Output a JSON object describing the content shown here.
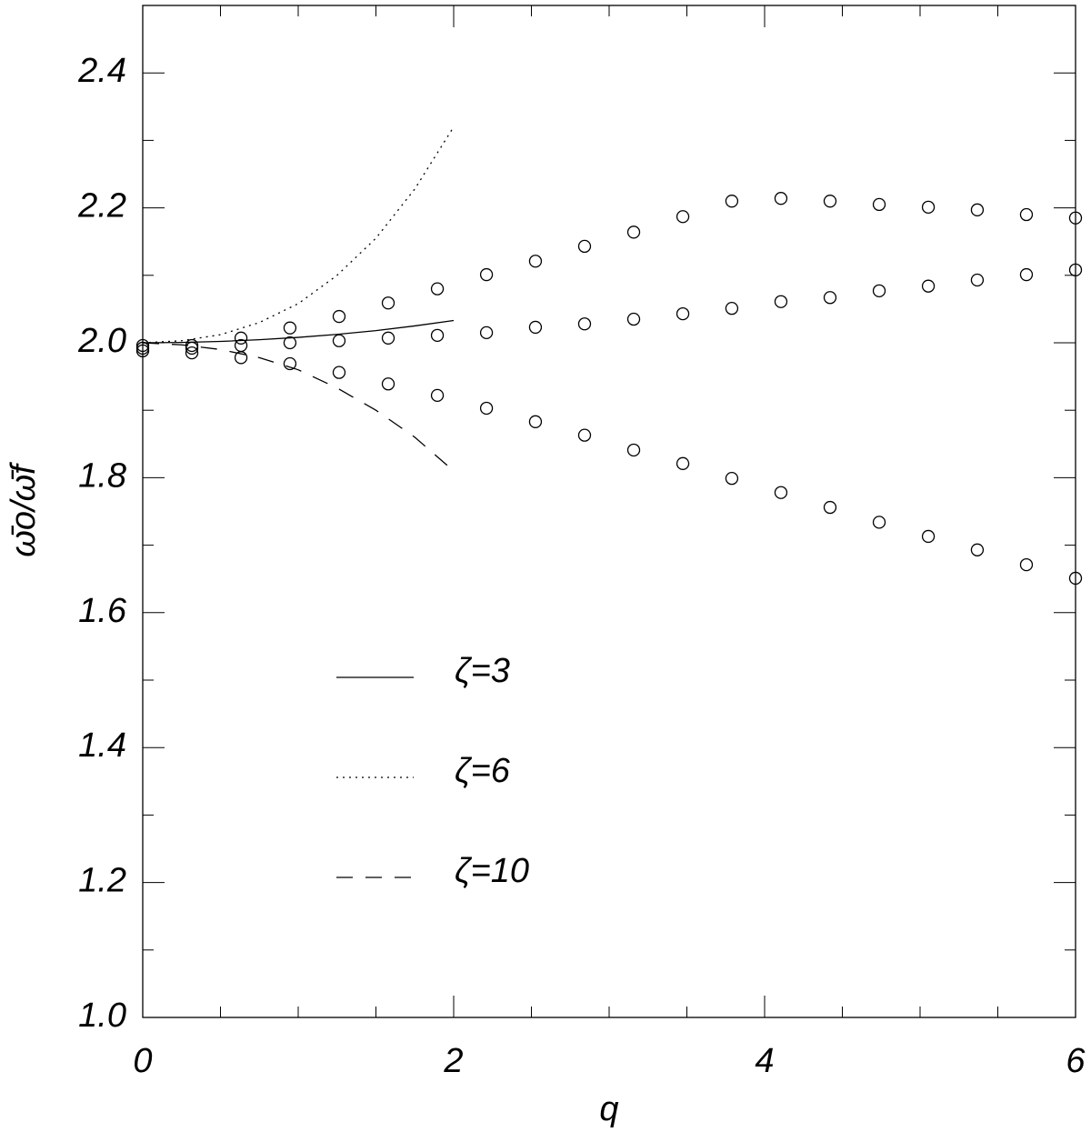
{
  "chart_data": {
    "type": "line",
    "xlabel": "q",
    "ylabel": "ω̄o/ω̄f",
    "xlim": [
      0,
      6
    ],
    "ylim": [
      1.0,
      2.5
    ],
    "xticks": [
      0,
      2,
      4,
      6
    ],
    "xminorticks": [
      0.5,
      1,
      1.5,
      2.5,
      3,
      3.5,
      4.5,
      5,
      5.5
    ],
    "yticks": [
      {
        "value": 1,
        "label": "1.0"
      },
      1.2,
      1.4,
      1.6,
      1.8,
      {
        "value": 2,
        "label": "2.0"
      },
      2.2,
      2.4
    ],
    "yminorticks": [
      1.1,
      1.3,
      1.5,
      1.7,
      1.9,
      2.1,
      2.3
    ],
    "legend": "center",
    "x": [
      0,
      0.25,
      0.5,
      0.75,
      1,
      1.25,
      1.5,
      1.75,
      2
    ],
    "series": [
      {
        "name": "ζ=3",
        "color": "#000000",
        "dash": "solid",
        "values": [
          2.0,
          2.0005,
          2.002,
          2.0045,
          2.008,
          2.0125,
          2.018,
          2.025,
          2.033
        ]
      },
      {
        "name": "ζ=6",
        "color": "#000000",
        "dash": "dotted",
        "values": [
          2.0,
          2.003,
          2.012,
          2.03,
          2.058,
          2.1,
          2.155,
          2.228,
          2.32
        ]
      },
      {
        "name": "ζ=10",
        "color": "#000000",
        "dash": "dashed",
        "values": [
          2.0,
          1.997,
          1.99,
          1.978,
          1.96,
          1.933,
          1.9,
          1.86,
          1.81
        ]
      }
    ],
    "marker_x": [
      0,
      0.316,
      0.632,
      0.947,
      1.263,
      1.579,
      1.895,
      2.211,
      2.526,
      2.842,
      3.158,
      3.474,
      3.789,
      4.105,
      4.421,
      4.737,
      5.053,
      5.368,
      5.684,
      6.0
    ],
    "markers": [
      {
        "color": "#000000",
        "values": [
          1.996,
          1.996,
          2.007,
          2.022,
          2.039,
          2.059,
          2.08,
          2.101,
          2.121,
          2.143,
          2.164,
          2.187,
          2.21,
          2.214,
          2.21,
          2.205,
          2.201,
          2.197,
          2.19,
          2.185
        ]
      },
      {
        "color": "#000000",
        "values": [
          1.992,
          1.992,
          1.996,
          2.0,
          2.003,
          2.007,
          2.011,
          2.015,
          2.023,
          2.028,
          2.035,
          2.043,
          2.051,
          2.061,
          2.067,
          2.077,
          2.084,
          2.093,
          2.101,
          2.108
        ]
      },
      {
        "color": "#000000",
        "values": [
          1.988,
          1.985,
          1.978,
          1.969,
          1.956,
          1.939,
          1.922,
          1.903,
          1.883,
          1.863,
          1.841,
          1.821,
          1.799,
          1.778,
          1.756,
          1.734,
          1.713,
          1.693,
          1.671,
          1.651
        ]
      }
    ]
  }
}
